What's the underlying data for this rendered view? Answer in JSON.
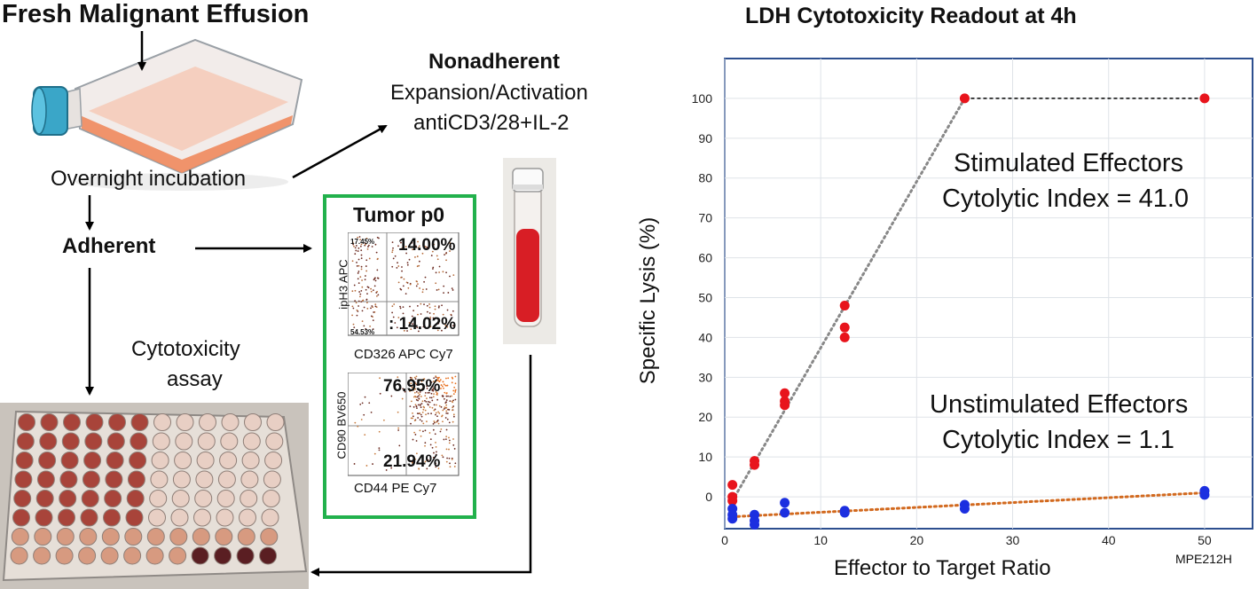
{
  "workflow": {
    "title": "Fresh Malignant Effusion",
    "nonadherent_label": "Nonadherent",
    "expansion_line1": "Expansion/Activation",
    "expansion_line2": "antiCD3/28+IL-2",
    "overnight_label": "Overnight incubation",
    "adherent_label": "Adherent",
    "cytotoxicity_line1": "Cytotoxicity",
    "cytotoxicity_line2": "assay"
  },
  "tumor_panel": {
    "title": "Tumor p0",
    "plot1": {
      "ylabel": "ipH3 APC",
      "xlabel": "CD326 APC Cy7",
      "q_top_left": "17.45%",
      "q_top_right": "14.00%",
      "q_bottom_right": ": 14.02%",
      "q_bottom_left": "54.53%"
    },
    "plot2": {
      "ylabel": "CD90 BV650",
      "xlabel": "CD44 PE Cy7",
      "q_top_right": "76.95%",
      "q_bottom_right": "21.94%"
    }
  },
  "colors": {
    "stimulated": "#e8141c",
    "unstimulated": "#1c2fe0",
    "green_border": "#22b14c",
    "axis_frame": "#2d4f8f",
    "trend_stim": "#888888",
    "trend_unstim": "#d2691e"
  },
  "chart_data": {
    "type": "scatter",
    "title": "LDH Cytotoxicity Readout at 4h",
    "xlabel": "Effector to Target Ratio",
    "ylabel": "Specific Lysis (%)",
    "xlim": [
      0,
      55
    ],
    "ylim": [
      -8,
      110
    ],
    "xticks": [
      0,
      10,
      20,
      30,
      40,
      50
    ],
    "yticks": [
      0,
      10,
      20,
      30,
      40,
      50,
      60,
      70,
      80,
      90,
      100
    ],
    "series": [
      {
        "name": "Stimulated Effectors",
        "color": "#e8141c",
        "points": [
          [
            0.8,
            3
          ],
          [
            0.8,
            0
          ],
          [
            0.8,
            -1
          ],
          [
            3.1,
            9
          ],
          [
            3.1,
            8
          ],
          [
            6.25,
            26
          ],
          [
            6.25,
            24
          ],
          [
            6.25,
            23
          ],
          [
            12.5,
            48
          ],
          [
            12.5,
            42.5
          ],
          [
            12.5,
            40
          ],
          [
            25,
            100
          ],
          [
            50,
            100
          ]
        ]
      },
      {
        "name": "Unstimulated Effectors",
        "color": "#1c2fe0",
        "points": [
          [
            0.8,
            -3
          ],
          [
            0.8,
            -4.5
          ],
          [
            0.8,
            -5.5
          ],
          [
            3.1,
            -4.5
          ],
          [
            3.1,
            -6
          ],
          [
            3.1,
            -7
          ],
          [
            6.25,
            -1.5
          ],
          [
            6.25,
            -4
          ],
          [
            12.5,
            -3.5
          ],
          [
            12.5,
            -4
          ],
          [
            25,
            -2
          ],
          [
            25,
            -3
          ],
          [
            50,
            1.5
          ],
          [
            50,
            0.5
          ]
        ]
      }
    ],
    "annotations": [
      {
        "line1": "Stimulated Effectors",
        "line2": "Cytolytic Index = 41.0"
      },
      {
        "line1": "Unstimulated Effectors",
        "line2": "Cytolytic Index = 1.1"
      }
    ],
    "footnote": "MPE212H"
  }
}
